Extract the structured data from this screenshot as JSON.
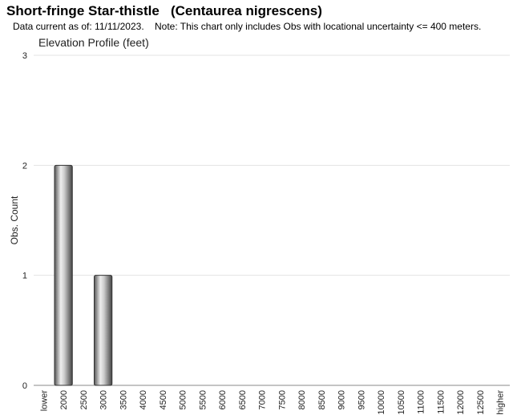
{
  "header": {
    "title": "Short-fringe Star-thistle   (Centaurea nigrescens)",
    "subtitle": "Data current as of: 11/11/2023.    Note: This chart only includes Obs with locational uncertainty <= 400 meters."
  },
  "chart_data": {
    "type": "bar",
    "title": "Elevation Profile (feet)",
    "y_label": "Obs. Count",
    "categories": [
      "lower",
      "2000",
      "2500",
      "3000",
      "3500",
      "4000",
      "4500",
      "5000",
      "5500",
      "6000",
      "6500",
      "7000",
      "7500",
      "8000",
      "8500",
      "9000",
      "9500",
      "10000",
      "10500",
      "11000",
      "11500",
      "12000",
      "12500",
      "higher"
    ],
    "values": [
      0,
      2,
      0,
      1,
      0,
      0,
      0,
      0,
      0,
      0,
      0,
      0,
      0,
      0,
      0,
      0,
      0,
      0,
      0,
      0,
      0,
      0,
      0,
      0
    ],
    "color": "#9a9a9a",
    "ylim": [
      0,
      3
    ],
    "yticks": [
      0,
      1,
      2,
      3
    ],
    "grid": true
  }
}
